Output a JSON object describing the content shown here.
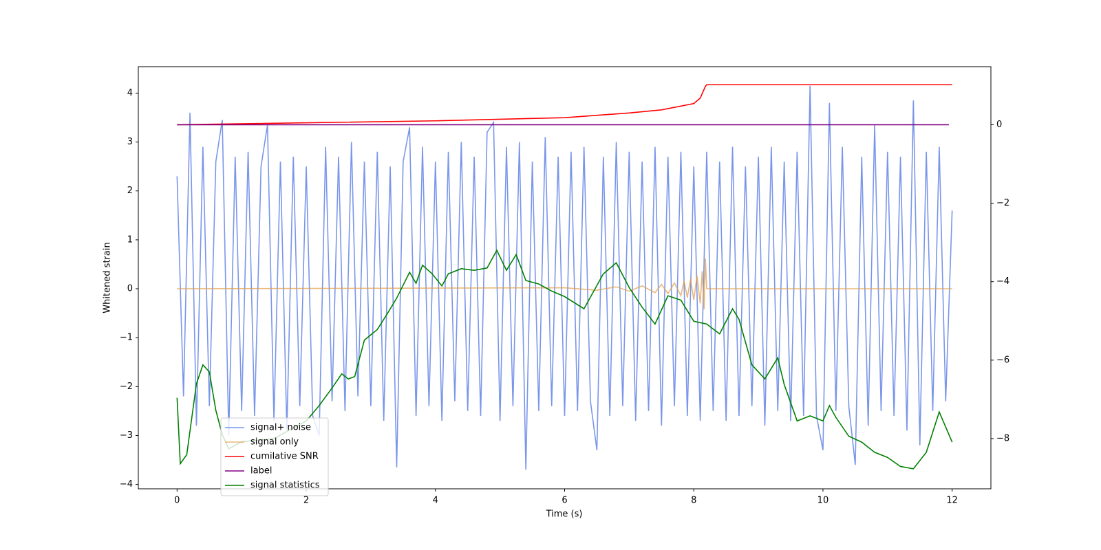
{
  "chart_data": {
    "type": "line",
    "x_label": "Time (s)",
    "y_label": "Whitened strain",
    "xlim": [
      -0.6,
      12.6
    ],
    "ylim": [
      -4.09,
      4.54
    ],
    "y2lim": [
      -9.28,
      1.48
    ],
    "xticks": [
      0,
      2,
      4,
      6,
      8,
      10,
      12
    ],
    "yticks": [
      {
        "value": -4,
        "label": "−4"
      },
      {
        "value": -3,
        "label": "−3"
      },
      {
        "value": -2,
        "label": "−2"
      },
      {
        "value": -1,
        "label": "−1"
      },
      0,
      1,
      2,
      3,
      4
    ],
    "y2ticks": [
      {
        "value": -8,
        "label": "−8"
      },
      {
        "value": -6,
        "label": "−6"
      },
      {
        "value": -4,
        "label": "−4"
      },
      {
        "value": -2,
        "label": "−2"
      },
      0
    ],
    "legend": "lower left",
    "series": [
      {
        "name": "signal+ noise",
        "color": "#4169e1",
        "opacity": 0.7,
        "x": [
          0,
          0.1,
          0.2,
          0.3,
          0.4,
          0.5,
          0.6,
          0.7,
          0.8,
          0.9,
          1,
          1.1,
          1.2,
          1.3,
          1.4,
          1.5,
          1.6,
          1.7,
          1.8,
          1.9,
          2,
          2.1,
          2.2,
          2.3,
          2.4,
          2.5,
          2.6,
          2.7,
          2.8,
          2.9,
          3,
          3.1,
          3.2,
          3.3,
          3.4,
          3.5,
          3.6,
          3.7,
          3.8,
          3.9,
          4,
          4.1,
          4.2,
          4.3,
          4.4,
          4.5,
          4.6,
          4.7,
          4.8,
          4.9,
          5,
          5.1,
          5.2,
          5.3,
          5.4,
          5.5,
          5.6,
          5.7,
          5.8,
          5.9,
          6,
          6.1,
          6.2,
          6.3,
          6.4,
          6.5,
          6.6,
          6.7,
          6.8,
          6.9,
          7,
          7.1,
          7.2,
          7.3,
          7.4,
          7.5,
          7.6,
          7.7,
          7.8,
          7.9,
          8,
          8.1,
          8.2,
          8.3,
          8.4,
          8.5,
          8.6,
          8.7,
          8.8,
          8.9,
          9,
          9.1,
          9.2,
          9.3,
          9.4,
          9.5,
          9.6,
          9.7,
          9.8,
          9.9,
          10,
          10.1,
          10.2,
          10.3,
          10.4,
          10.5,
          10.6,
          10.7,
          10.8,
          10.9,
          11,
          11.1,
          11.2,
          11.3,
          11.4,
          11.5,
          11.6,
          11.7,
          11.8,
          11.9,
          12
        ],
        "values": [
          2.3,
          -2.2,
          3.6,
          -2.8,
          2.9,
          -2.4,
          2.6,
          3.45,
          -3.0,
          2.7,
          -2.5,
          2.8,
          -2.6,
          2.5,
          3.35,
          -2.7,
          2.6,
          -2.9,
          2.7,
          -2.4,
          2.5,
          -2.6,
          -3.0,
          2.9,
          -2.3,
          2.7,
          -2.5,
          3.0,
          -2.2,
          2.6,
          -2.4,
          2.8,
          -2.7,
          2.5,
          -3.65,
          2.6,
          3.3,
          -2.6,
          2.9,
          -2.4,
          2.6,
          -2.7,
          2.8,
          -2.3,
          3.0,
          -2.5,
          2.7,
          -2.6,
          3.2,
          3.4,
          -2.7,
          2.9,
          -2.4,
          3.0,
          -3.7,
          2.6,
          -2.5,
          3.1,
          -2.4,
          2.7,
          -2.6,
          2.8,
          -2.5,
          2.9,
          -2.3,
          -3.3,
          2.7,
          -2.6,
          3.0,
          -2.4,
          2.8,
          -2.7,
          2.6,
          -2.5,
          2.9,
          -2.8,
          2.7,
          -2.4,
          2.8,
          -2.6,
          2.5,
          -2.7,
          2.8,
          -2.5,
          2.6,
          -2.7,
          2.9,
          -2.6,
          2.5,
          -2.4,
          2.7,
          -2.8,
          2.9,
          -2.5,
          2.6,
          -2.7,
          2.8,
          -2.6,
          4.15,
          -2.6,
          -3.3,
          3.8,
          -2.5,
          2.9,
          -2.4,
          -3.6,
          2.7,
          -2.8,
          3.35,
          -2.5,
          2.8,
          -2.6,
          2.7,
          -2.9,
          3.85,
          -3.2,
          2.8,
          -2.5,
          2.9,
          -2.3,
          1.6
        ]
      },
      {
        "name": "signal only",
        "color": "#e0a050",
        "opacity": 0.75,
        "x": [
          0,
          6,
          6.5,
          6.8,
          7.0,
          7.2,
          7.4,
          7.5,
          7.6,
          7.7,
          7.8,
          7.85,
          7.9,
          7.95,
          8.0,
          8.05,
          8.1,
          8.13,
          8.16,
          8.18,
          8.2,
          12
        ],
        "values": [
          0,
          0.02,
          -0.03,
          0.04,
          -0.05,
          0.06,
          -0.08,
          0.09,
          -0.1,
          0.12,
          -0.14,
          0.16,
          -0.18,
          0.2,
          -0.23,
          0.27,
          -0.3,
          0.36,
          -0.42,
          0.62,
          0,
          0
        ]
      },
      {
        "name": "cumilative SNR",
        "color": "#ff0000",
        "axis": "y2",
        "x": [
          0,
          4,
          6,
          7,
          7.5,
          8.0,
          8.1,
          8.18,
          8.2,
          12
        ],
        "values": [
          0,
          0.1,
          0.18,
          0.3,
          0.38,
          0.54,
          0.68,
          0.98,
          1.02,
          1.02
        ]
      },
      {
        "name": "label",
        "color": "#800080",
        "axis": "y2",
        "x": [
          0,
          11.95
        ],
        "values": [
          0,
          0
        ]
      },
      {
        "name": "signal statistics",
        "color": "#008000",
        "axis": "y2",
        "x": [
          0,
          0.05,
          0.15,
          0.3,
          0.4,
          0.5,
          0.6,
          0.7,
          0.8,
          1.0,
          1.5,
          2.0,
          2.2,
          2.4,
          2.55,
          2.65,
          2.75,
          2.9,
          3.1,
          3.25,
          3.4,
          3.6,
          3.7,
          3.8,
          3.95,
          4.1,
          4.2,
          4.4,
          4.6,
          4.8,
          4.95,
          5.1,
          5.25,
          5.4,
          5.6,
          5.8,
          6.0,
          6.3,
          6.6,
          6.8,
          7.0,
          7.2,
          7.4,
          7.6,
          7.8,
          8.0,
          8.2,
          8.4,
          8.6,
          8.7,
          8.9,
          9.1,
          9.3,
          9.4,
          9.6,
          9.8,
          10.0,
          10.1,
          10.2,
          10.4,
          10.6,
          10.8,
          11.0,
          11.2,
          11.4,
          11.6,
          11.8,
          12.0
        ],
        "values": [
          -6.96,
          -8.64,
          -8.41,
          -6.6,
          -6.12,
          -6.3,
          -7.28,
          -7.9,
          -8.26,
          -8.08,
          -8.0,
          -7.55,
          -7.16,
          -6.71,
          -6.35,
          -6.48,
          -6.42,
          -5.49,
          -5.22,
          -4.83,
          -4.42,
          -3.76,
          -4.04,
          -3.58,
          -3.8,
          -4.11,
          -3.8,
          -3.67,
          -3.71,
          -3.65,
          -3.2,
          -3.71,
          -3.31,
          -3.97,
          -4.06,
          -4.24,
          -4.38,
          -4.69,
          -3.8,
          -3.52,
          -4.15,
          -4.65,
          -5.08,
          -4.36,
          -4.47,
          -5.01,
          -5.08,
          -5.33,
          -4.69,
          -4.96,
          -6.12,
          -6.48,
          -5.94,
          -6.62,
          -7.55,
          -7.42,
          -7.55,
          -7.16,
          -7.46,
          -7.94,
          -8.09,
          -8.35,
          -8.48,
          -8.71,
          -8.77,
          -8.35,
          -7.32,
          -8.09
        ]
      }
    ]
  }
}
